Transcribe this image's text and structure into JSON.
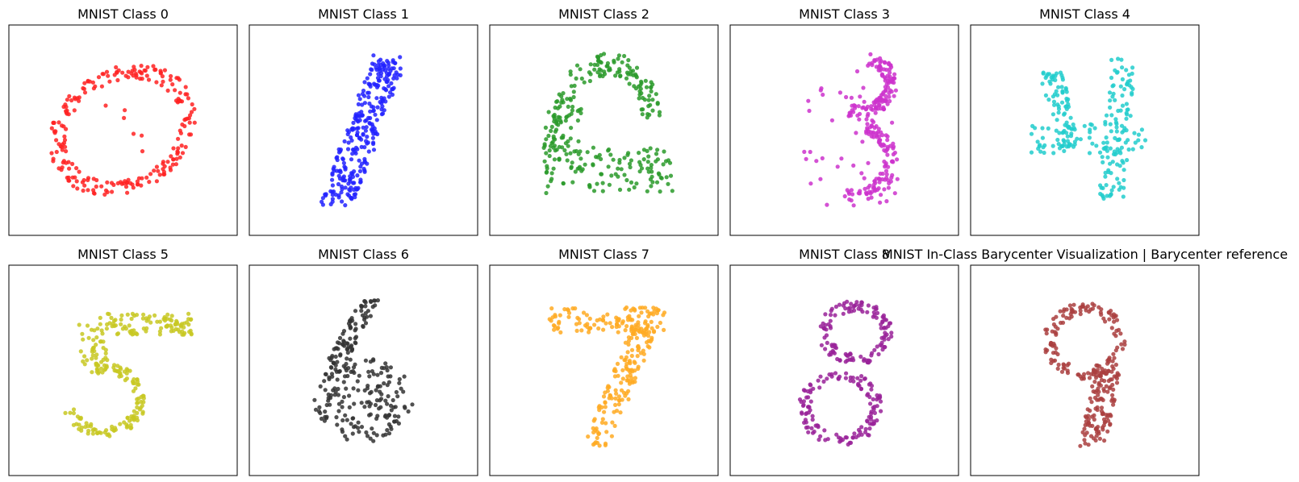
{
  "chart_data": [
    {
      "type": "scatter",
      "title": "MNIST Class 0",
      "color": "#ff2222",
      "shape": "ring",
      "shape_params": {
        "cx": 0.0,
        "cy": 0.0,
        "rx": 1.0,
        "ry": 0.75,
        "thickness": 0.22,
        "tilt_deg": 20,
        "n": 230,
        "inner": 6
      },
      "xlim": [
        -1.5,
        1.5
      ],
      "ylim": [
        -1.25,
        1.25
      ]
    },
    {
      "type": "scatter",
      "title": "MNIST Class 1",
      "color": "#2222ff",
      "shape": "stroke",
      "shape_params": {
        "x0": -0.35,
        "y0": -0.85,
        "x1": 0.35,
        "y1": 0.85,
        "width": 0.22,
        "n": 280
      },
      "xlim": [
        -1.5,
        1.5
      ],
      "ylim": [
        -1.25,
        1.25
      ]
    },
    {
      "type": "scatter",
      "title": "MNIST Class 2",
      "color": "#2a9a2a",
      "shape": "arch",
      "shape_params": {
        "n": 300
      },
      "xlim": [
        -1.5,
        1.5
      ],
      "ylim": [
        -1.25,
        1.25
      ]
    },
    {
      "type": "scatter",
      "title": "MNIST Class 3",
      "color": "#cc33cc",
      "shape": "three",
      "shape_params": {
        "n": 270
      },
      "xlim": [
        -1.5,
        1.5
      ],
      "ylim": [
        -1.25,
        1.25
      ]
    },
    {
      "type": "scatter",
      "title": "MNIST Class 4",
      "color": "#22cccc",
      "shape": "four",
      "shape_params": {
        "n": 250
      },
      "xlim": [
        -1.5,
        1.5
      ],
      "ylim": [
        -1.25,
        1.25
      ]
    },
    {
      "type": "scatter",
      "title": "MNIST Class 5",
      "color": "#c8c822",
      "shape": "five",
      "shape_params": {
        "n": 260
      },
      "xlim": [
        -1.5,
        1.5
      ],
      "ylim": [
        -1.25,
        1.25
      ]
    },
    {
      "type": "scatter",
      "title": "MNIST Class 6",
      "color": "#333333",
      "shape": "six",
      "shape_params": {
        "n": 260
      },
      "xlim": [
        -1.5,
        1.5
      ],
      "ylim": [
        -1.25,
        1.25
      ]
    },
    {
      "type": "scatter",
      "title": "MNIST Class 7",
      "color": "#ffaa22",
      "shape": "seven",
      "shape_params": {
        "n": 260
      },
      "xlim": [
        -1.5,
        1.5
      ],
      "ylim": [
        -1.25,
        1.25
      ]
    },
    {
      "type": "scatter",
      "title": "MNIST Class 8",
      "color": "#992299",
      "shape": "eight",
      "shape_params": {
        "n": 260
      },
      "xlim": [
        -1.5,
        1.5
      ],
      "ylim": [
        -1.25,
        1.25
      ]
    },
    {
      "type": "scatter",
      "title": "MNIST In-Class Barycenter Visualization | Barycenter reference",
      "color": "#aa3f3f",
      "shape": "nine",
      "shape_params": {
        "n": 260
      },
      "xlim": [
        -1.5,
        1.5
      ],
      "ylim": [
        -1.25,
        1.25
      ]
    }
  ]
}
